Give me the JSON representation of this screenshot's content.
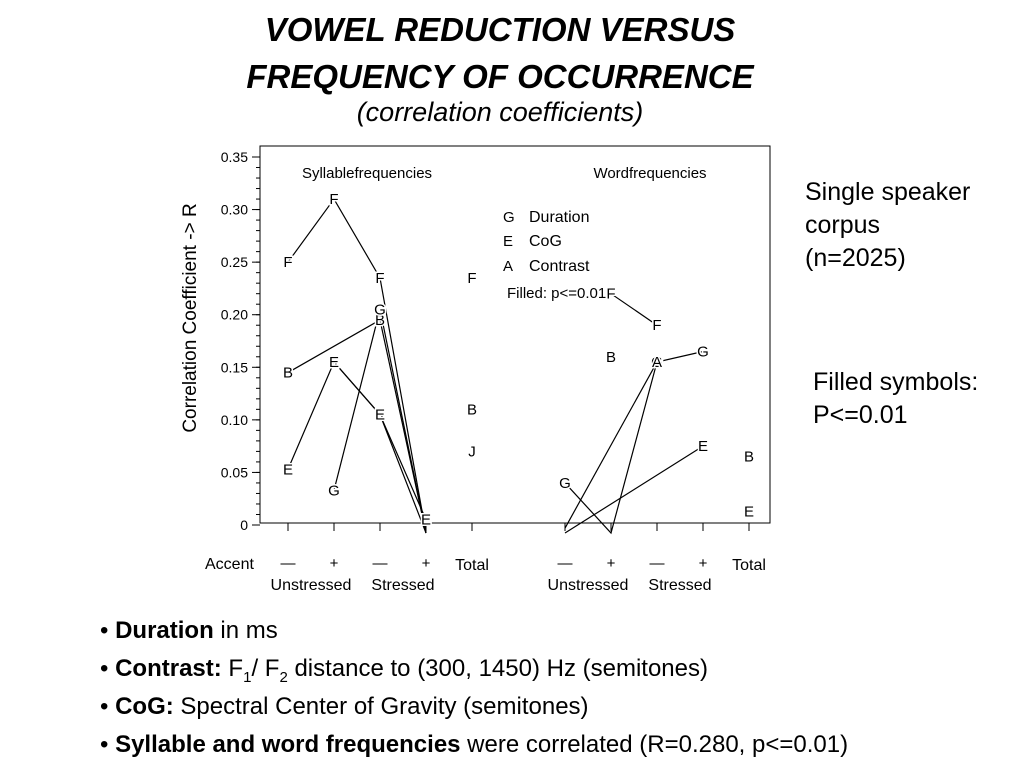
{
  "slide": {
    "title_line1": "VOWEL REDUCTION VERSUS",
    "title_line2": "FREQUENCY OF OCCURRENCE",
    "subtitle": "(correlation coefficients)",
    "corpus_note": [
      "Single speaker",
      "corpus",
      "(n=2025)"
    ],
    "filled_note": [
      "Filled symbols:",
      "P<=0.01"
    ]
  },
  "bullets": [
    {
      "bold": "Duration",
      "rest": " in ms"
    },
    {
      "bold": "Contrast:",
      "f1": "F",
      "sub1": "1",
      "mid": "/ F",
      "sub2": "2",
      "rest": " distance to (300, 1450) Hz (semitones)"
    },
    {
      "bold": "CoG:",
      "rest": " Spectral Center of Gravity (semitones)"
    },
    {
      "bold": "Syllable and word frequencies",
      "rest": " were correlated (R=0.280, p<=0.01)"
    }
  ],
  "colors": {
    "ink": "#000000",
    "background": "#ffffff"
  },
  "chart_data": {
    "type": "line",
    "ylabel": "Correlation Coefficient -> R",
    "ylim": [
      0,
      0.35
    ],
    "yticks": [
      "0",
      "0.05",
      "0.10",
      "0.15",
      "0.20",
      "0.25",
      "0.30",
      "0.35"
    ],
    "x_axis_title": "Accent",
    "x_positions": [
      {
        "label": "—",
        "group": "Syllablefrequencies"
      },
      {
        "label": "+",
        "group": "Syllablefrequencies"
      },
      {
        "label": "—",
        "group": "Syllablefrequencies"
      },
      {
        "label": "+",
        "group": "Syllablefrequencies"
      },
      {
        "label": "Total",
        "group": "Syllablefrequencies"
      },
      {
        "label": "—",
        "group": "Wordfrequencies"
      },
      {
        "label": "+",
        "group": "Wordfrequencies"
      },
      {
        "label": "—",
        "group": "Wordfrequencies"
      },
      {
        "label": "+",
        "group": "Wordfrequencies"
      },
      {
        "label": "Total",
        "group": "Wordfrequencies"
      }
    ],
    "stress_labels": [
      "Unstressed",
      "Stressed",
      "Unstressed",
      "Stressed"
    ],
    "panel_labels": [
      "Syllablefrequencies",
      "Wordfrequencies"
    ],
    "legend": {
      "items": [
        {
          "symbol": "G",
          "name": "Duration"
        },
        {
          "symbol": "E",
          "name": "CoG"
        },
        {
          "symbol": "A",
          "name": "Contrast"
        }
      ],
      "note": "Filled: p<=0.01"
    },
    "series": [
      {
        "symbol": "F",
        "values": [
          0.25,
          0.31,
          0.235,
          -0.02,
          0.235,
          null,
          0.22,
          0.19,
          null,
          null
        ]
      },
      {
        "symbol": "B",
        "values": [
          0.145,
          null,
          0.195,
          -0.02,
          0.11,
          null,
          0.16,
          null,
          null,
          0.065
        ]
      },
      {
        "symbol": "J",
        "values": [
          null,
          0.155,
          0.105,
          -0.02,
          0.07,
          null,
          null,
          null,
          null,
          null
        ]
      },
      {
        "symbol": "G",
        "values": [
          null,
          0.033,
          0.205,
          -0.02,
          null,
          0.04,
          -0.01,
          0.155,
          0.165,
          null
        ]
      },
      {
        "symbol": "E",
        "values": [
          0.053,
          0.155,
          0.105,
          0.005,
          null,
          -0.015,
          null,
          null,
          0.075,
          0.013
        ]
      },
      {
        "symbol": "A",
        "values": [
          null,
          null,
          null,
          null,
          null,
          -0.003,
          null,
          0.155,
          null,
          null
        ]
      }
    ],
    "grid": false,
    "legend_position": "top-right"
  }
}
